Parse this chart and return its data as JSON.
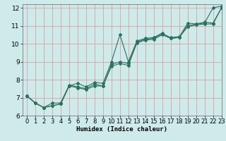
{
  "title": "",
  "xlabel": "Humidex (Indice chaleur)",
  "ylabel": "",
  "xlim": [
    -0.5,
    23
  ],
  "ylim": [
    6,
    12.2
  ],
  "yticks": [
    6,
    7,
    8,
    9,
    10,
    11,
    12
  ],
  "xticks": [
    0,
    1,
    2,
    3,
    4,
    5,
    6,
    7,
    8,
    9,
    10,
    11,
    12,
    13,
    14,
    15,
    16,
    17,
    18,
    19,
    20,
    21,
    22,
    23
  ],
  "bg_color": "#ceeaea",
  "grid_color": "#daa0a0",
  "line_color": "#2d7060",
  "series": [
    [
      7.1,
      6.7,
      6.45,
      6.55,
      6.65,
      7.65,
      7.8,
      7.6,
      7.85,
      7.8,
      9.0,
      10.5,
      9.0,
      10.15,
      10.3,
      10.35,
      10.6,
      10.3,
      10.35,
      11.15,
      11.1,
      11.15,
      12.0,
      12.1
    ],
    [
      7.1,
      6.7,
      6.45,
      6.7,
      6.7,
      7.7,
      7.6,
      7.5,
      7.75,
      7.65,
      8.85,
      9.0,
      8.9,
      10.1,
      10.25,
      10.3,
      10.55,
      10.35,
      10.4,
      11.0,
      11.1,
      11.2,
      11.15,
      12.0
    ],
    [
      7.1,
      6.7,
      6.45,
      6.55,
      6.65,
      7.65,
      7.55,
      7.45,
      7.65,
      7.65,
      8.75,
      8.9,
      8.8,
      10.05,
      10.2,
      10.25,
      10.5,
      10.3,
      10.35,
      10.95,
      11.05,
      11.1,
      11.1,
      12.0
    ]
  ],
  "tick_fontsize": 6,
  "xlabel_fontsize": 6.5
}
